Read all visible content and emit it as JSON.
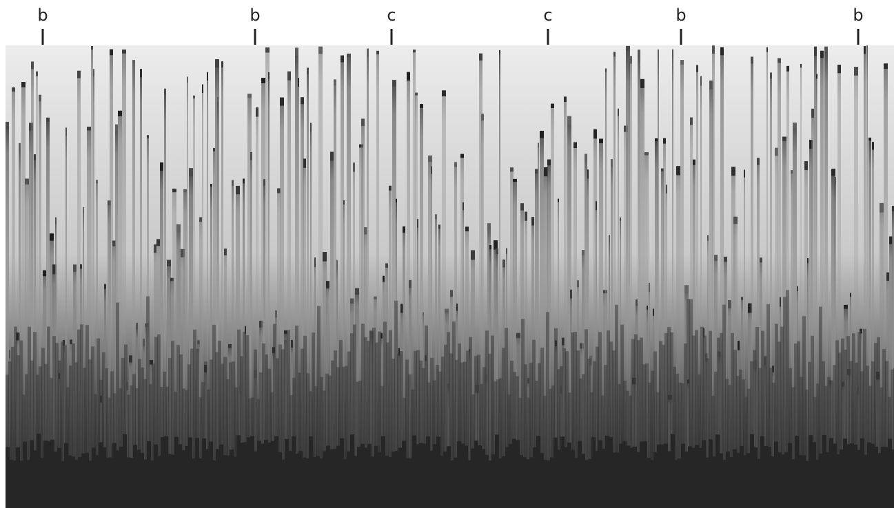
{
  "labels": [
    "b",
    "b",
    "c",
    "c",
    "b",
    "b"
  ]
}
